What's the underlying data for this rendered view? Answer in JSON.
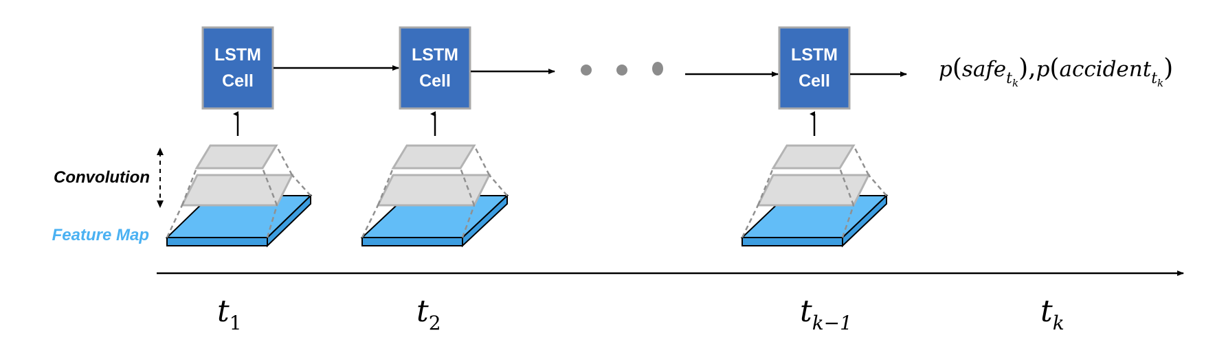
{
  "colors": {
    "lstm_fill": "#3a6fbd",
    "feature_map": "#62bdf7",
    "feature_map_label": "#4ab1f2",
    "conv_layer": "#dddddd",
    "dots": "#8c8c8c"
  },
  "lstm_cells": [
    {
      "line1": "LSTM",
      "line2": "Cell"
    },
    {
      "line1": "LSTM",
      "line2": "Cell"
    },
    {
      "line1": "LSTM",
      "line2": "Cell"
    }
  ],
  "output": {
    "p1": "p",
    "open1": "(",
    "safe": "safe",
    "sub1": "t",
    "subsub1": "k",
    "close1": "),",
    "p2": "p",
    "open2": "(",
    "accident": "accident",
    "sub2": "t",
    "subsub2": "k",
    "close2": ")"
  },
  "labels": {
    "convolution": "Convolution",
    "feature_map": "Feature Map"
  },
  "timesteps": [
    {
      "base": "t",
      "sub": "1"
    },
    {
      "base": "t",
      "sub": "2"
    },
    {
      "base": "t",
      "sub": "k−1"
    },
    {
      "base": "t",
      "sub": "k"
    }
  ]
}
